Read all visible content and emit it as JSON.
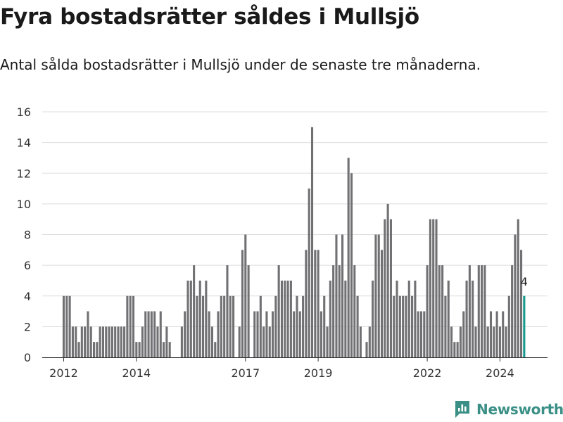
{
  "header": {
    "title": "Fyra bostadsrätter såldes i Mullsjö",
    "subtitle": "Antal sålda bostadsrätter i Mullsjö under de senaste tre månaderna."
  },
  "brand": {
    "name": "Newsworthy",
    "color": "#3a8f86"
  },
  "colors": {
    "bar": "#717073",
    "highlight": "#1a9a8f",
    "grid": "#dddddd",
    "axis": "#333333"
  },
  "chart_data": {
    "type": "bar",
    "start": "2012-01",
    "x_tick_labels": [
      "2012",
      "2014",
      "2017",
      "2019",
      "2022",
      "2024"
    ],
    "ylim": [
      0,
      16
    ],
    "y_ticks": [
      0,
      2,
      4,
      6,
      8,
      10,
      12,
      14,
      16
    ],
    "values": [
      4,
      4,
      4,
      2,
      2,
      1,
      2,
      2,
      3,
      2,
      1,
      1,
      2,
      2,
      2,
      2,
      2,
      2,
      2,
      2,
      2,
      4,
      4,
      4,
      1,
      1,
      2,
      3,
      3,
      3,
      3,
      2,
      3,
      1,
      2,
      1,
      0,
      0,
      0,
      2,
      3,
      5,
      5,
      6,
      4,
      5,
      4,
      5,
      3,
      2,
      1,
      3,
      4,
      4,
      6,
      4,
      4,
      0,
      2,
      7,
      8,
      6,
      0,
      3,
      3,
      4,
      2,
      3,
      2,
      3,
      4,
      6,
      5,
      5,
      5,
      5,
      3,
      4,
      3,
      4,
      7,
      11,
      15,
      7,
      7,
      3,
      4,
      2,
      5,
      6,
      8,
      6,
      8,
      5,
      13,
      12,
      6,
      4,
      2,
      0,
      1,
      2,
      5,
      8,
      8,
      7,
      9,
      10,
      9,
      4,
      5,
      4,
      4,
      4,
      5,
      4,
      5,
      3,
      3,
      3,
      6,
      9,
      9,
      9,
      6,
      6,
      4,
      5,
      2,
      1,
      1,
      2,
      3,
      5,
      6,
      5,
      2,
      6,
      6,
      6,
      2,
      3,
      2,
      3,
      2,
      3,
      2,
      4,
      6,
      8,
      9,
      7,
      4
    ],
    "highlight_last": true,
    "annotation": {
      "label": "4",
      "value": 4
    }
  }
}
